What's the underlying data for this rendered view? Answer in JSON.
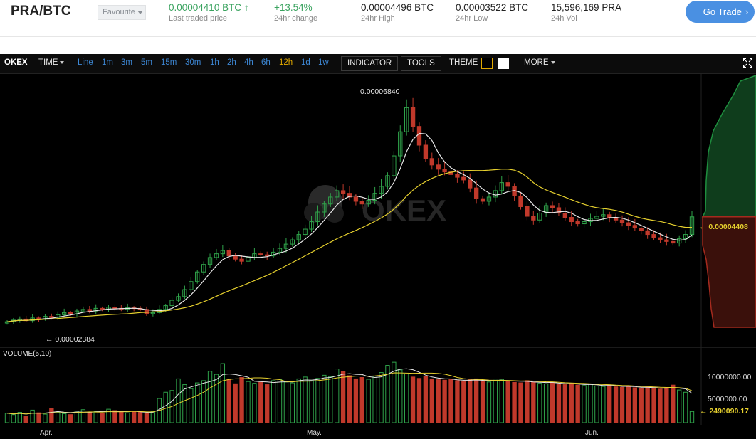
{
  "header": {
    "pair": "PRA/BTC",
    "favourite_label": "Favourite",
    "last_price": {
      "value": "0.00004410 BTC",
      "label": "Last traded price",
      "arrow": "↑"
    },
    "change": {
      "value": "+13.54%",
      "label": "24hr change"
    },
    "high": {
      "value": "0.00004496 BTC",
      "label": "24hr High"
    },
    "low": {
      "value": "0.00003522 BTC",
      "label": "24hr Low"
    },
    "vol": {
      "value": "15,596,169 PRA",
      "label": "24h Vol"
    },
    "go_trade_label": "Go Trade",
    "go_trade_chevron": "›"
  },
  "toolbar": {
    "brand": "OKEX",
    "time_label": "TIME",
    "timeframes": [
      "Line",
      "1m",
      "3m",
      "5m",
      "15m",
      "30m",
      "1h",
      "2h",
      "4h",
      "6h",
      "12h",
      "1d",
      "1w"
    ],
    "active_timeframe": "12h",
    "indicator_label": "INDICATOR",
    "tools_label": "TOOLS",
    "theme_label": "THEME",
    "more_label": "MORE",
    "expand_icon": "expand-icon"
  },
  "chart": {
    "watermark": "OKEX",
    "price_max_label": "0.00006840",
    "price_min_label": "← 0.00002384",
    "current_price_label": "← 0.00004408",
    "volume_title": "VOLUME(5,10)",
    "volume_ticks": [
      "10000000.00",
      "5000000.00"
    ],
    "volume_current_label": "← 2490090.17",
    "x_ticks": [
      "Apr.",
      "May.",
      "Jun."
    ],
    "colors": {
      "up": "#2fa34a",
      "down": "#c0392b",
      "ma5": "#e8e8e8",
      "ma10": "#e6d02e",
      "depth_bid": "#1e8e3e",
      "depth_ask": "#a52a1e",
      "background": "#000000"
    }
  },
  "chart_data": {
    "type": "candlestick",
    "x_ticks": [
      "Apr.",
      "May.",
      "Jun."
    ],
    "ylim": [
      2e-05,
      7e-05
    ],
    "annotated_high": 6.84e-05,
    "annotated_low": 2.384e-05,
    "last_close": 4.408e-05,
    "volume_ylim": [
      0,
      14000000
    ],
    "volume_last": 2490090.17,
    "series": [
      {
        "name": "close",
        "values": [
          2.45e-05,
          2.48e-05,
          2.5e-05,
          2.47e-05,
          2.52e-05,
          2.5e-05,
          2.55e-05,
          2.53e-05,
          2.58e-05,
          2.62e-05,
          2.6e-05,
          2.65e-05,
          2.68e-05,
          2.65e-05,
          2.7e-05,
          2.68e-05,
          2.72e-05,
          2.7e-05,
          2.68e-05,
          2.71e-05,
          2.7e-05,
          2.68e-05,
          2.6e-05,
          2.62e-05,
          2.68e-05,
          2.75e-05,
          2.85e-05,
          2.92e-05,
          3.05e-05,
          3.2e-05,
          3.38e-05,
          3.52e-05,
          3.65e-05,
          3.72e-05,
          3.78e-05,
          3.68e-05,
          3.62e-05,
          3.58e-05,
          3.65e-05,
          3.72e-05,
          3.7e-05,
          3.68e-05,
          3.75e-05,
          3.82e-05,
          3.9e-05,
          3.98e-05,
          4.08e-05,
          4.18e-05,
          4.32e-05,
          4.5e-05,
          4.65e-05,
          4.78e-05,
          4.9e-05,
          4.85e-05,
          4.78e-05,
          4.7e-05,
          4.65e-05,
          4.72e-05,
          4.85e-05,
          4.98e-05,
          5.18e-05,
          5.55e-05,
          6e-05,
          6.45e-05,
          6.1e-05,
          5.75e-05,
          5.5e-05,
          5.38e-05,
          5.3e-05,
          5.25e-05,
          5.2e-05,
          5.15e-05,
          5.1e-05,
          4.95e-05,
          4.75e-05,
          4.7e-05,
          4.78e-05,
          4.9e-05,
          5.05e-05,
          4.98e-05,
          4.8e-05,
          4.6e-05,
          4.42e-05,
          4.35e-05,
          4.48e-05,
          4.62e-05,
          4.58e-05,
          4.48e-05,
          4.4e-05,
          4.32e-05,
          4.28e-05,
          4.32e-05,
          4.38e-05,
          4.42e-05,
          4.45e-05,
          4.4e-05,
          4.35e-05,
          4.3e-05,
          4.25e-05,
          4.2e-05,
          4.15e-05,
          4.08e-05,
          4.02e-05,
          3.98e-05,
          3.95e-05,
          3.92e-05,
          4e-05,
          4.08e-05,
          4.41e-05
        ]
      },
      {
        "name": "volume",
        "values": [
          2100000,
          1800000,
          2300000,
          1500000,
          2800000,
          2200000,
          1900000,
          3100000,
          2400000,
          2000000,
          1800000,
          2600000,
          2900000,
          2300000,
          2500000,
          2100000,
          3000000,
          2700000,
          2400000,
          2200000,
          2600000,
          2300000,
          2000000,
          2500000,
          5400000,
          6800000,
          7200000,
          9800000,
          8500000,
          7600000,
          8900000,
          9400000,
          11500000,
          10800000,
          13200000,
          9600000,
          8700000,
          10100000,
          9200000,
          8800000,
          9000000,
          8500000,
          9400000,
          9700000,
          9100000,
          8900000,
          9800000,
          10200000,
          9500000,
          9900000,
          10600000,
          10300000,
          12000000,
          11400000,
          10500000,
          9800000,
          10100000,
          9700000,
          10400000,
          11200000,
          12800000,
          13500000,
          11800000,
          10900000,
          10200000,
          9900000,
          10300000,
          9800000,
          9600000,
          9500000,
          9700000,
          9400000,
          9200000,
          9600000,
          9800000,
          9300000,
          9100000,
          9500000,
          9700000,
          9200000,
          9000000,
          8900000,
          9400000,
          9100000,
          8800000,
          8700000,
          9000000,
          8600000,
          8500000,
          8800000,
          8400000,
          8300000,
          8600000,
          8200000,
          8100000,
          8400000,
          8000000,
          7900000,
          8200000,
          7800000,
          7700000,
          7900000,
          7600000,
          7500000,
          7800000,
          8400000,
          7300000,
          6800000,
          2490090
        ]
      }
    ]
  }
}
